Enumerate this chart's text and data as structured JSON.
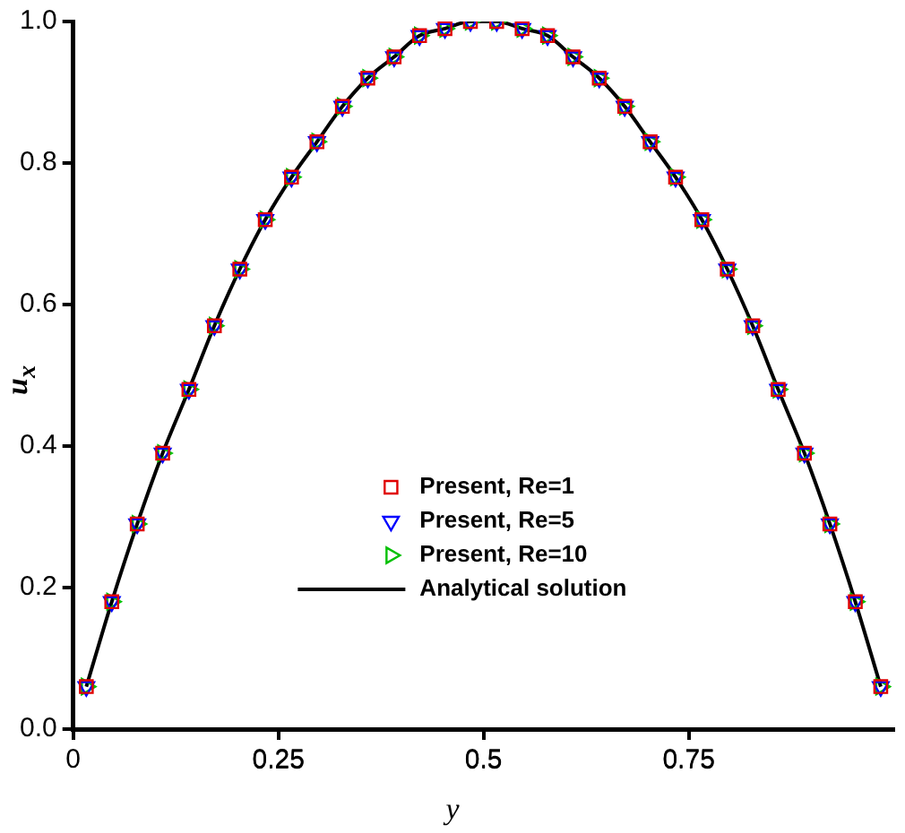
{
  "chart_data": {
    "type": "scatter",
    "xlabel": "y",
    "ylabel": "u$_{x}$",
    "xlim": [
      0,
      1
    ],
    "ylim": [
      0,
      1
    ],
    "xticks": [
      0,
      0.25,
      0.5,
      0.75
    ],
    "yticks": [
      {
        "value": 0,
        "label": "0.0"
      },
      {
        "value": 0.2,
        "label": "0.2"
      },
      {
        "value": 0.4,
        "label": "0.4"
      },
      {
        "value": 0.6,
        "label": "0.6"
      },
      {
        "value": 0.8,
        "label": "0.8"
      },
      {
        "value": 1,
        "label": "1.0"
      }
    ],
    "x": [
      0.016,
      0.047,
      0.078,
      0.109,
      0.141,
      0.172,
      0.203,
      0.234,
      0.266,
      0.297,
      0.328,
      0.359,
      0.391,
      0.422,
      0.453,
      0.484,
      0.516,
      0.547,
      0.578,
      0.609,
      0.641,
      0.672,
      0.703,
      0.734,
      0.766,
      0.797,
      0.828,
      0.859,
      0.891,
      0.922,
      0.953,
      0.984
    ],
    "grid": false,
    "legend": "bottom",
    "series": [
      {
        "name": "Present, Re=1",
        "color": "#e00000",
        "marker": "square",
        "values": [
          0.06,
          0.18,
          0.29,
          0.39,
          0.48,
          0.57,
          0.65,
          0.72,
          0.78,
          0.83,
          0.88,
          0.92,
          0.95,
          0.98,
          0.99,
          1.0,
          1.0,
          0.99,
          0.98,
          0.95,
          0.92,
          0.88,
          0.83,
          0.78,
          0.72,
          0.65,
          0.57,
          0.48,
          0.39,
          0.29,
          0.18,
          0.06
        ]
      },
      {
        "name": "Present, Re=5",
        "color": "#0000ff",
        "marker": "triangle_down",
        "values": [
          0.06,
          0.18,
          0.29,
          0.39,
          0.48,
          0.57,
          0.65,
          0.72,
          0.78,
          0.83,
          0.88,
          0.92,
          0.95,
          0.98,
          0.99,
          1.0,
          1.0,
          0.99,
          0.98,
          0.95,
          0.92,
          0.88,
          0.83,
          0.78,
          0.72,
          0.65,
          0.57,
          0.48,
          0.39,
          0.29,
          0.18,
          0.06
        ]
      },
      {
        "name": "Present, Re=10",
        "color": "#00c000",
        "marker": "triangle_right",
        "values": [
          0.06,
          0.18,
          0.29,
          0.39,
          0.48,
          0.57,
          0.65,
          0.72,
          0.78,
          0.83,
          0.88,
          0.92,
          0.95,
          0.98,
          0.99,
          1.0,
          1.0,
          0.99,
          0.98,
          0.95,
          0.92,
          0.88,
          0.83,
          0.78,
          0.72,
          0.65,
          0.57,
          0.48,
          0.39,
          0.29,
          0.18,
          0.06
        ]
      },
      {
        "name": "Analytical solution",
        "type": "line",
        "color": "#000000",
        "marker": "none",
        "line_style": "solid",
        "values": [
          0.06,
          0.18,
          0.29,
          0.39,
          0.48,
          0.57,
          0.65,
          0.72,
          0.78,
          0.83,
          0.88,
          0.92,
          0.95,
          0.98,
          0.99,
          1.0,
          1.0,
          0.99,
          0.98,
          0.95,
          0.92,
          0.88,
          0.83,
          0.78,
          0.72,
          0.65,
          0.57,
          0.48,
          0.39,
          0.29,
          0.18,
          0.06
        ]
      }
    ]
  }
}
